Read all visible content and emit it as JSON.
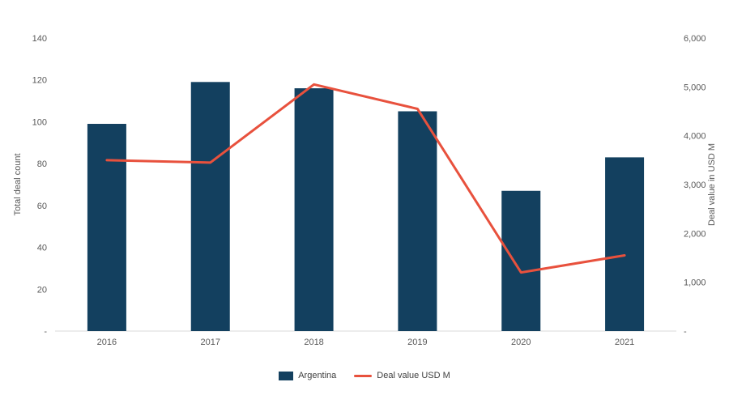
{
  "chart_data": {
    "type": "bar",
    "subtype": "combo-bar-line",
    "categories": [
      "2016",
      "2017",
      "2018",
      "2019",
      "2020",
      "2021"
    ],
    "series": [
      {
        "name": "Argentina",
        "type": "bar",
        "axis": "left",
        "color": "#13405f",
        "values": [
          99,
          119,
          116,
          105,
          67,
          83
        ]
      },
      {
        "name": "Deal value USD M",
        "type": "line",
        "axis": "right",
        "color": "#e8513d",
        "values": [
          3500,
          3450,
          5050,
          4550,
          1200,
          1550
        ]
      }
    ],
    "left_axis": {
      "label": "Total deal count",
      "min": 0,
      "max": 140,
      "step": 20,
      "zero_label": "-"
    },
    "right_axis": {
      "label": "Deal value in USD M",
      "min": 0,
      "max": 6000,
      "step": 1000,
      "zero_label": "-"
    },
    "legend_position": "bottom",
    "grid": false,
    "colors": {
      "baseline": "#d9d9d9",
      "tick_text": "#595959",
      "background": "#ffffff"
    }
  }
}
